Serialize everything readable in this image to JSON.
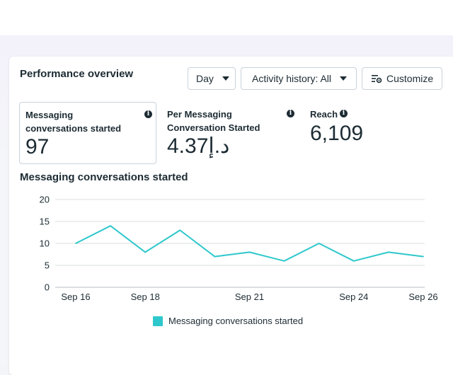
{
  "header": {
    "title": "Performance overview"
  },
  "controls": {
    "day_label": "Day",
    "activity_label": "Activity history: All",
    "customize_label": "Customize"
  },
  "metrics": [
    {
      "label": "Messaging conversations started",
      "value": "97"
    },
    {
      "label": "Per Messaging Conversation Started",
      "value": "4.37د.إ"
    },
    {
      "label": "Reach",
      "value": "6,109"
    }
  ],
  "colors": {
    "series": "#2ec8cc",
    "grid": "#d9dde1",
    "text": "#1c2b33"
  },
  "chart_data": {
    "type": "line",
    "title": "Messaging conversations started",
    "xlabel": "",
    "ylabel": "",
    "x": [
      "Sep 16",
      "Sep 17",
      "Sep 18",
      "Sep 19",
      "Sep 20",
      "Sep 21",
      "Sep 22",
      "Sep 23",
      "Sep 24",
      "Sep 25",
      "Sep 26"
    ],
    "x_tick_labels": [
      "Sep 16",
      "Sep 18",
      "Sep 21",
      "Sep 24",
      "Sep 26"
    ],
    "y_ticks": [
      0,
      5,
      10,
      15,
      20
    ],
    "ylim": [
      0,
      20
    ],
    "grid": true,
    "legend_position": "bottom",
    "series": [
      {
        "name": "Messaging conversations started",
        "values": [
          10,
          14,
          8,
          13,
          7,
          8,
          6,
          10,
          6,
          8,
          7
        ]
      }
    ]
  }
}
